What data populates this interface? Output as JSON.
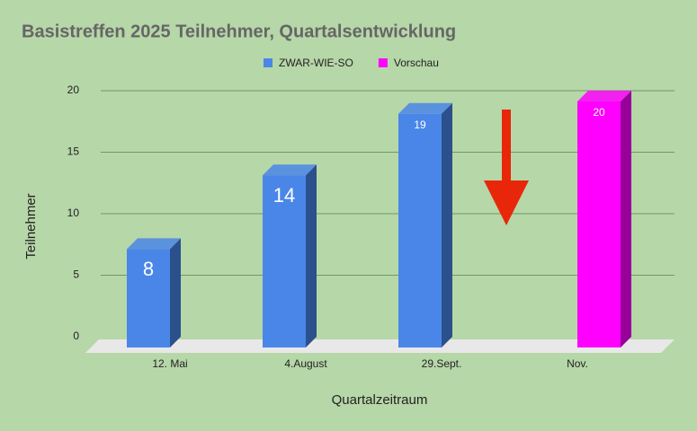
{
  "chart_data": {
    "type": "bar",
    "title": "Basistreffen 2025 Teilnehmer, Quartalsentwicklung",
    "categories": [
      "12. Mai",
      "4.August",
      "29.Sept.",
      "Nov."
    ],
    "series": [
      {
        "name": "ZWAR-WIE-SO",
        "color": "#4a86e8",
        "values": [
          8,
          14,
          19,
          null
        ]
      },
      {
        "name": "Vorschau",
        "color": "#ff00ff",
        "values": [
          null,
          null,
          null,
          20
        ]
      }
    ],
    "x_label": "Quartalzeitraum",
    "y_label": "Teilnehmer",
    "ylim": [
      0,
      20
    ],
    "yticks": [
      0,
      5,
      10,
      15,
      20
    ],
    "grid": true,
    "legend": "top"
  }
}
